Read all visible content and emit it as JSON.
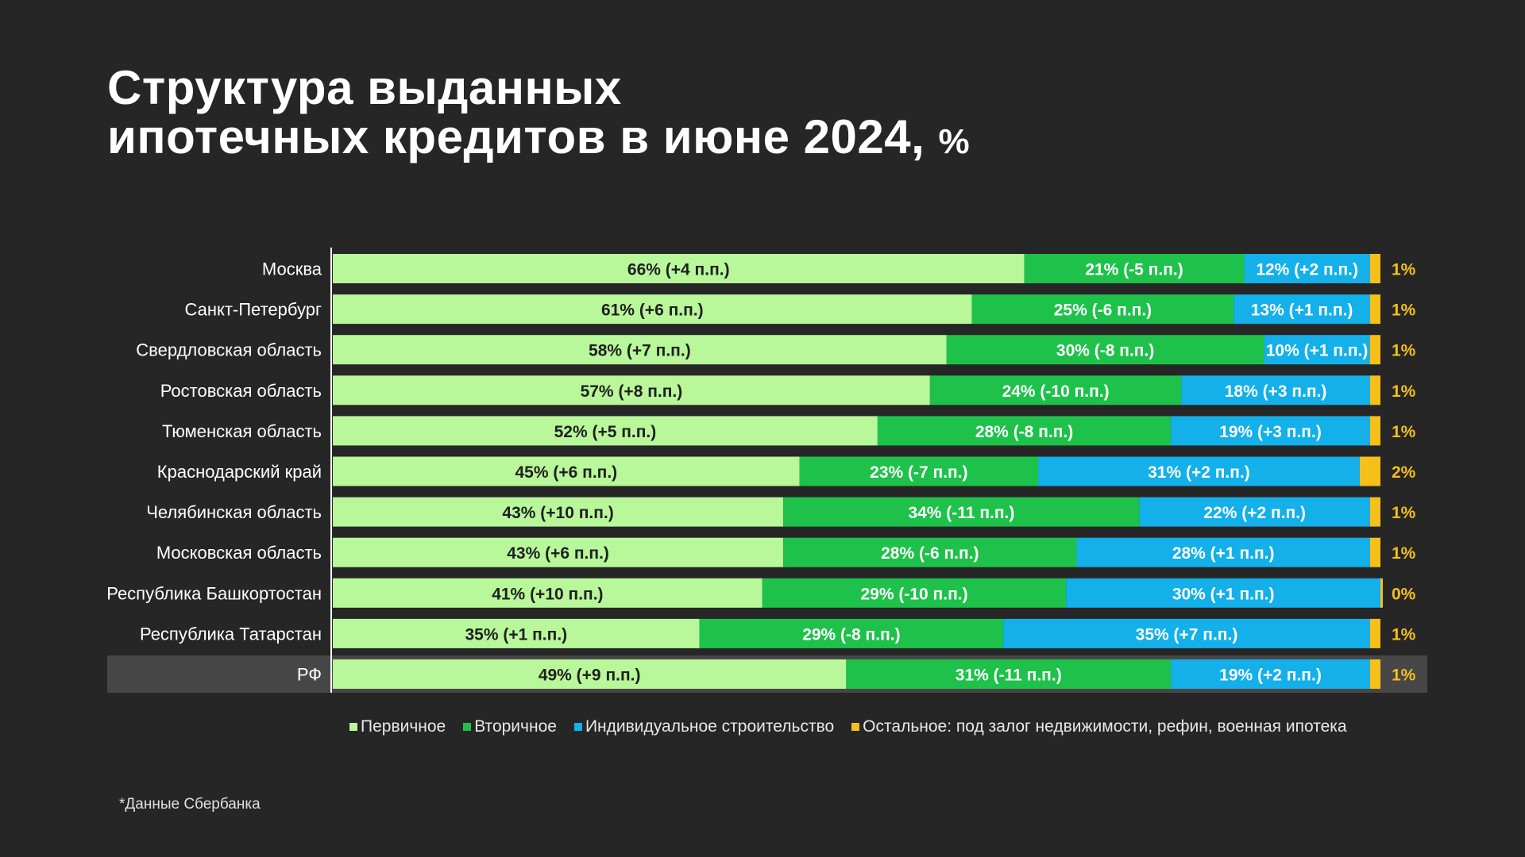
{
  "title": {
    "line1": "Структура выданных",
    "line2": "ипотечных кредитов в июне 2024,",
    "unit": "%"
  },
  "chart_data": {
    "type": "bar",
    "orientation": "horizontal",
    "stacked": true,
    "categories": [
      "Москва",
      "Санкт-Петербург",
      "Свердловская область",
      "Ростовская область",
      "Тюменская область",
      "Краснодарский край",
      "Челябинская область",
      "Московская область",
      "Республика Башкортостан",
      "Республика Татарстан",
      "РФ"
    ],
    "highlight_category": "РФ",
    "series": [
      {
        "name": "Первичное",
        "color": "#b8f79a",
        "values": [
          66,
          61,
          58,
          57,
          52,
          45,
          43,
          43,
          41,
          35,
          49
        ],
        "labels": [
          "66% (+4 п.п.)",
          "61% (+6 п.п.)",
          "58% (+7 п.п.)",
          "57% (+8 п.п.)",
          "52% (+5 п.п.)",
          "45% (+6 п.п.)",
          "43% (+10 п.п.)",
          "43% (+6 п.п.)",
          "41% (+10 п.п.)",
          "35% (+1 п.п.)",
          "49% (+9 п.п.)"
        ]
      },
      {
        "name": "Вторичное",
        "color": "#1ec24a",
        "values": [
          21,
          25,
          30,
          24,
          28,
          23,
          34,
          28,
          29,
          29,
          31
        ],
        "labels": [
          "21% (-5 п.п.)",
          "25% (-6 п.п.)",
          "30% (-8 п.п.)",
          "24% (-10 п.п.)",
          "28% (-8 п.п.)",
          "23% (-7 п.п.)",
          "34% (-11 п.п.)",
          "28% (-6 п.п.)",
          "29% (-10 п.п.)",
          "29% (-8 п.п.)",
          "31% (-11 п.п.)"
        ]
      },
      {
        "name": "Индивидуальное строительство",
        "color": "#13b0ea",
        "values": [
          12,
          13,
          10,
          18,
          19,
          31,
          22,
          28,
          30,
          35,
          19
        ],
        "labels": [
          "12% (+2 п.п.)",
          "13% (+1 п.п.)",
          "10% (+1 п.п.)",
          "18% (+3 п.п.)",
          "19% (+3 п.п.)",
          "31% (+2 п.п.)",
          "22% (+2 п.п.)",
          "28% (+1 п.п.)",
          "30% (+1 п.п.)",
          "35% (+7 п.п.)",
          "19% (+2 п.п.)"
        ]
      },
      {
        "name": "Остальное: под залог недвижимости, рефин, военная ипотека",
        "color": "#f5c01a",
        "values": [
          1,
          1,
          1,
          1,
          1,
          2,
          1,
          1,
          0,
          1,
          1
        ],
        "labels": [
          "1%",
          "1%",
          "1%",
          "1%",
          "1%",
          "2%",
          "1%",
          "1%",
          "0%",
          "1%",
          "1%"
        ]
      }
    ],
    "xlim": [
      0,
      100
    ]
  },
  "footnote": "*Данные Сбербанка"
}
